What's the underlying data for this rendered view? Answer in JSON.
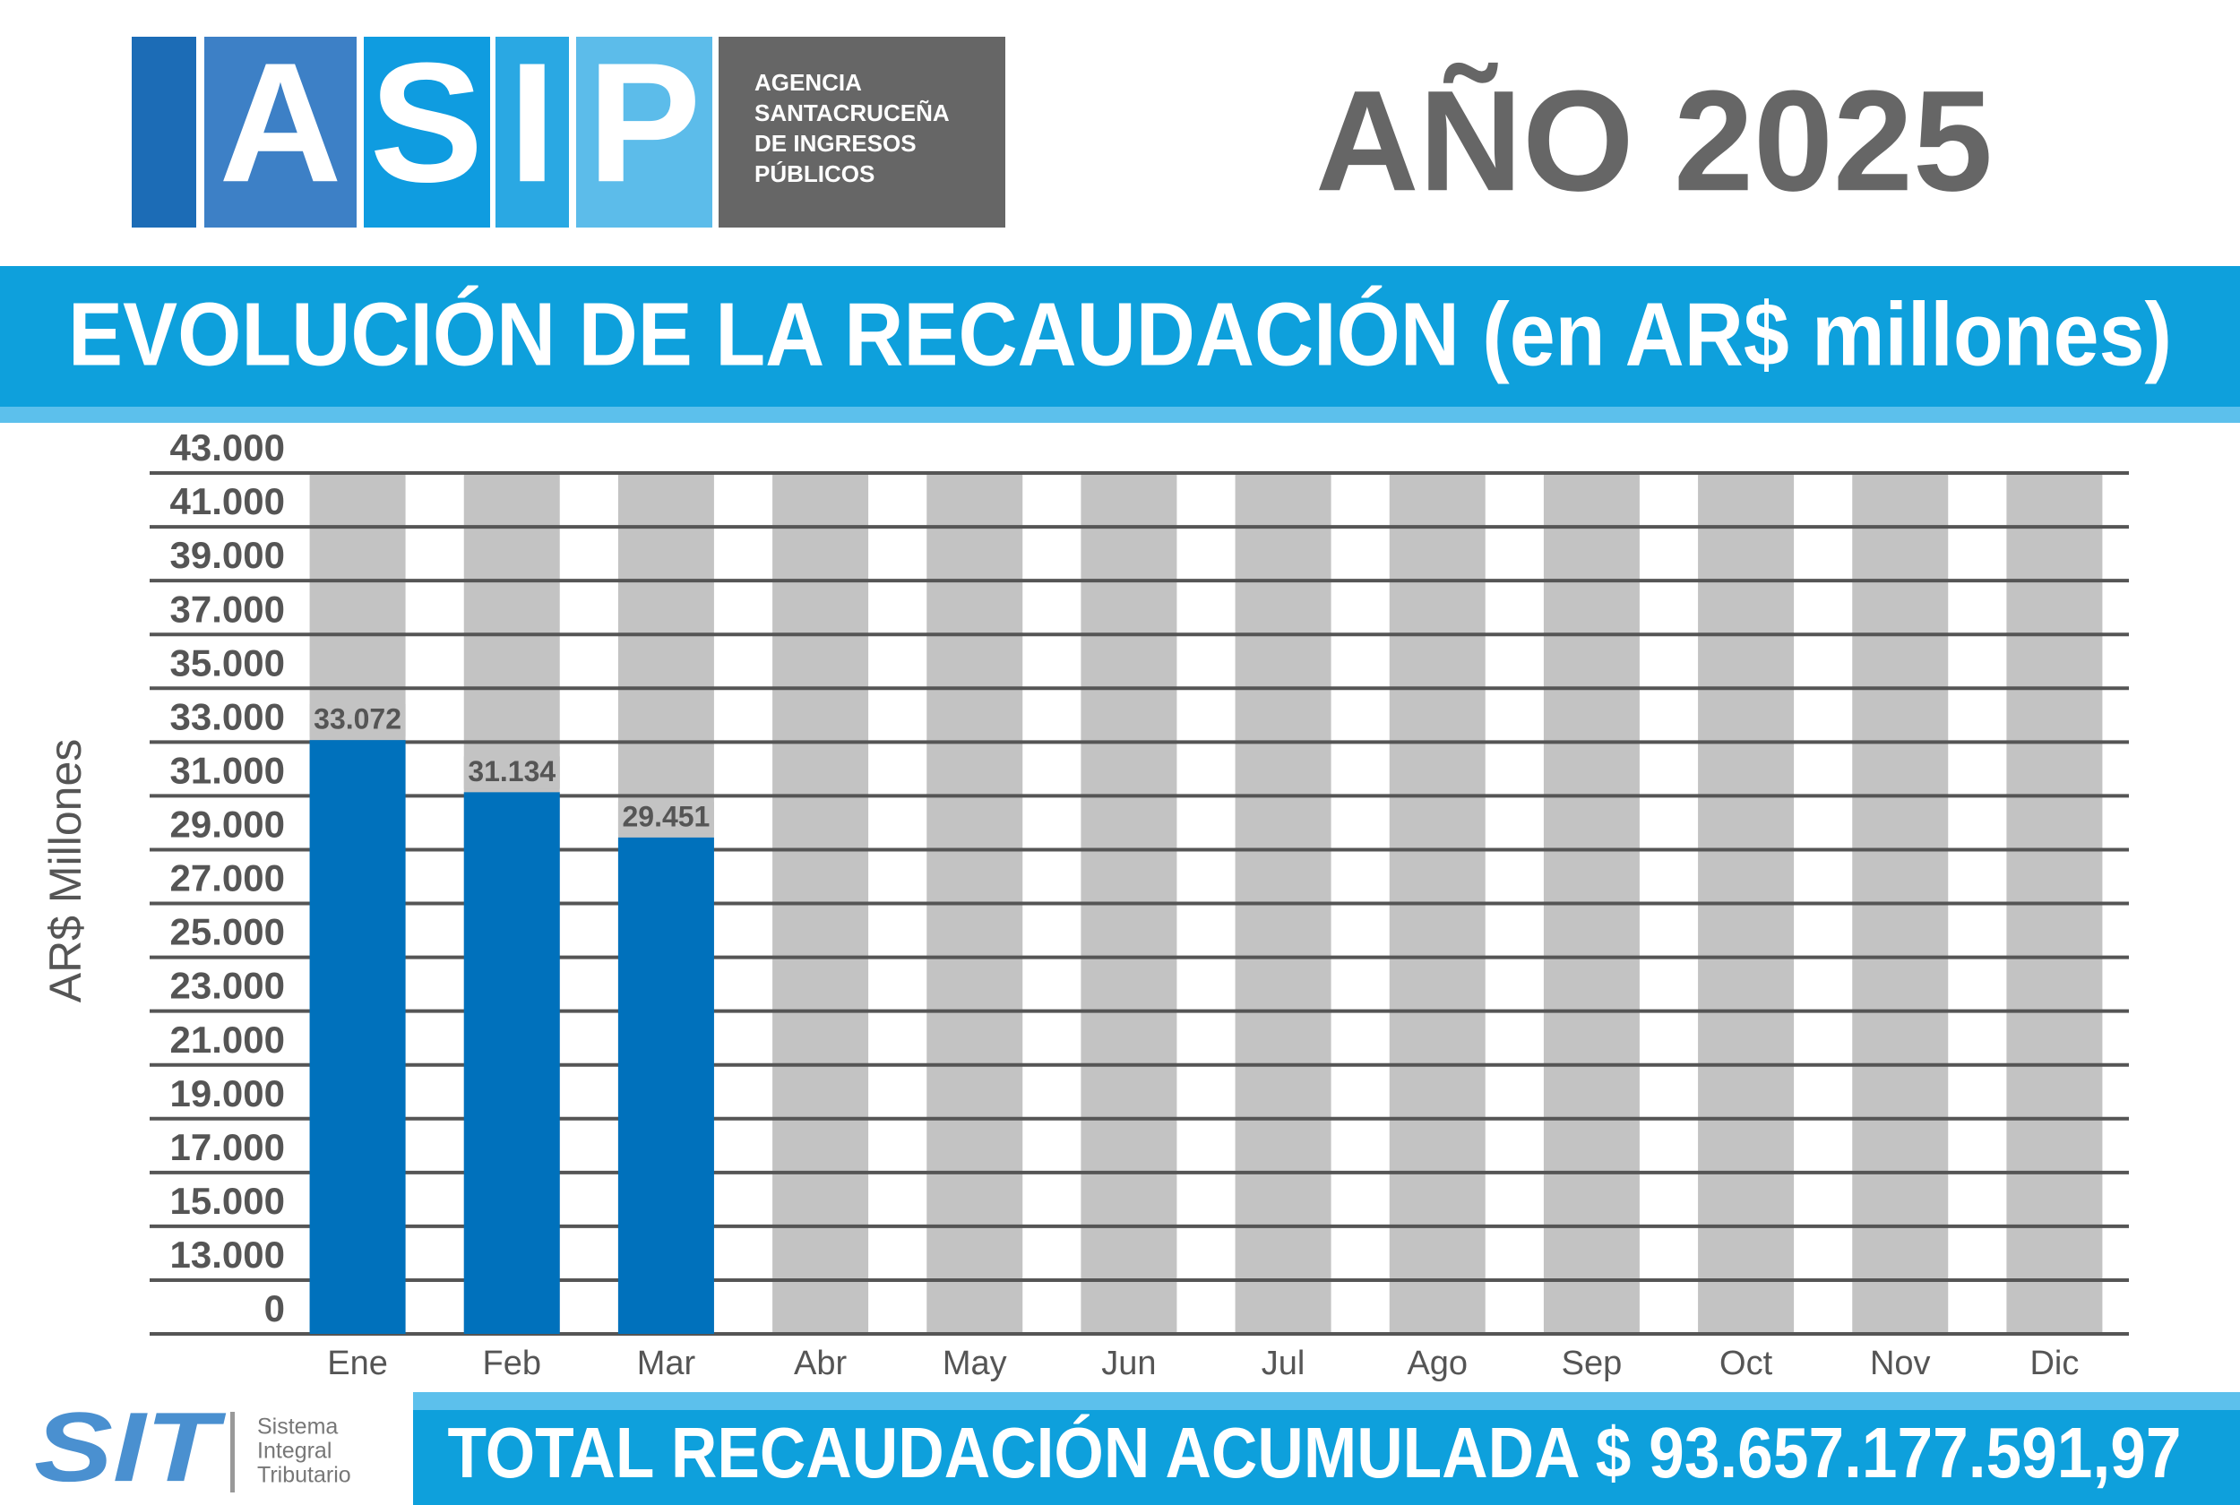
{
  "header": {
    "logo_letters": [
      "A",
      "S",
      "I",
      "P"
    ],
    "agency_lines": [
      "AGENCIA",
      "SANTACRUCEÑA",
      "DE INGRESOS",
      "PÚBLICOS"
    ],
    "year": "AÑO 2025"
  },
  "chart_data": {
    "type": "bar",
    "title": "EVOLUCIÓN DE LA RECAUDACIÓN (en AR$ millones)",
    "y_label": "AR$ Millones",
    "categories": [
      "Ene",
      "Feb",
      "Mar",
      "Abr",
      "May",
      "Jun",
      "Jul",
      "Ago",
      "Sep",
      "Oct",
      "Nov",
      "Dic"
    ],
    "values": [
      33072,
      31134,
      29451,
      null,
      null,
      null,
      null,
      null,
      null,
      null,
      null,
      null
    ],
    "value_labels": [
      "33.072",
      "31.134",
      "29.451",
      null,
      null,
      null,
      null,
      null,
      null,
      null,
      null,
      null
    ],
    "color": "#0071bc",
    "ylim": [
      0,
      43000
    ],
    "yticks": [
      0,
      {
        "value": 13000,
        "label": "13.000"
      },
      {
        "value": 15000,
        "label": "15.000"
      },
      {
        "value": 17000,
        "label": "17.000"
      },
      {
        "value": 19000,
        "label": "19.000"
      },
      {
        "value": 21000,
        "label": "21.000"
      },
      {
        "value": 23000,
        "label": "23.000"
      },
      {
        "value": 25000,
        "label": "25.000"
      },
      {
        "value": 27000,
        "label": "27.000"
      },
      {
        "value": 29000,
        "label": "29.000"
      },
      {
        "value": 31000,
        "label": "31.000"
      },
      {
        "value": 33000,
        "label": "33.000"
      },
      {
        "value": 35000,
        "label": "35.000"
      },
      {
        "value": 37000,
        "label": "37.000"
      },
      {
        "value": 39000,
        "label": "39.000"
      },
      {
        "value": 41000,
        "label": "41.000"
      },
      {
        "value": 43000,
        "label": "43.000"
      }
    ],
    "grid": true
  },
  "footer": {
    "total": "TOTAL RECAUDACIÓN ACUMULADA $ 93.657.177.591,97",
    "sit_logo": "SIT",
    "sit_lines": [
      "Sistema",
      "Integral",
      "Tributario"
    ]
  }
}
